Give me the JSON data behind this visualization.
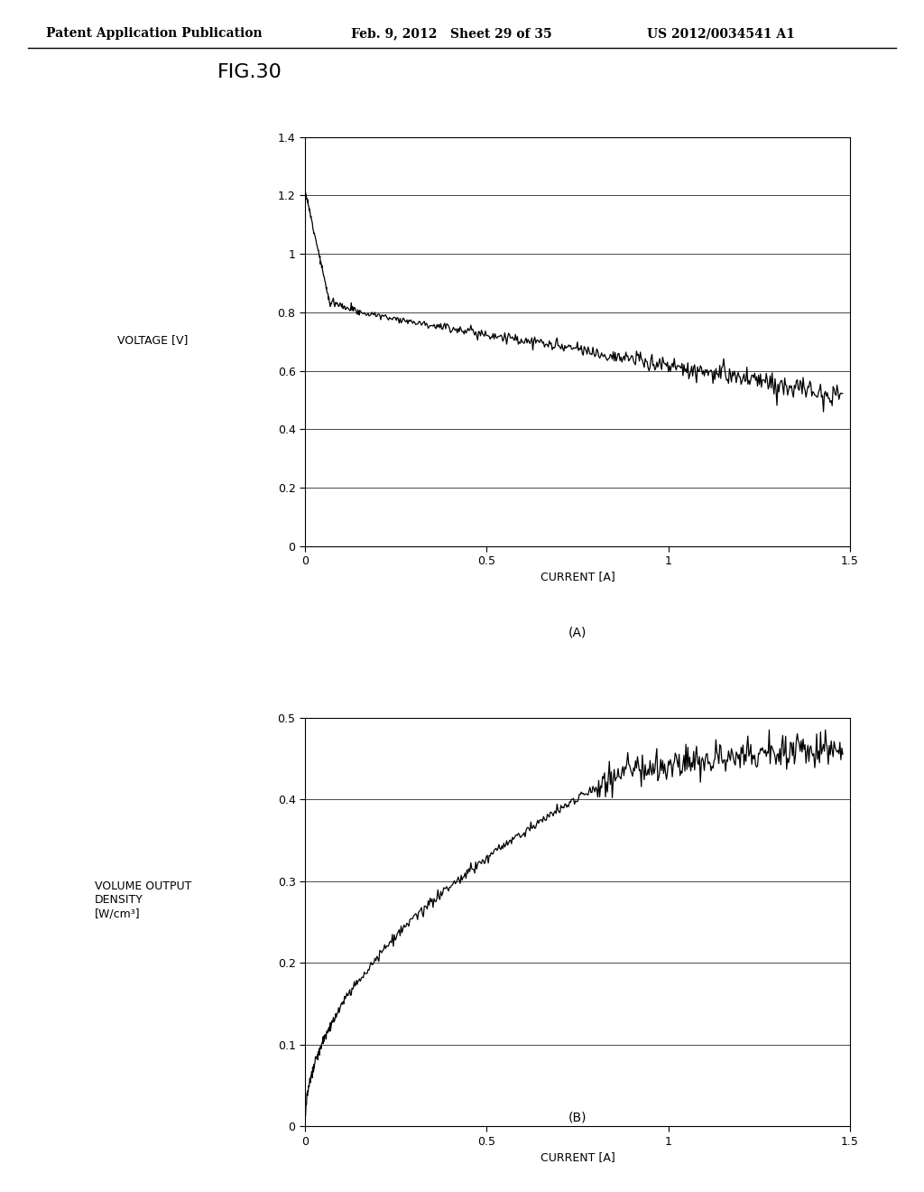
{
  "header_left": "Patent Application Publication",
  "header_mid": "Feb. 9, 2012   Sheet 29 of 35",
  "header_right": "US 2012/0034541 A1",
  "fig_label": "FIG.30",
  "plot_A": {
    "xlabel": "CURRENT [A]",
    "ylabel": "VOLTAGE [V]",
    "caption": "(A)",
    "xlim": [
      0,
      1.5
    ],
    "ylim": [
      0,
      1.4
    ],
    "xticks": [
      0,
      0.5,
      1,
      1.5
    ],
    "yticks": [
      0,
      0.2,
      0.4,
      0.6,
      0.8,
      1.0,
      1.2,
      1.4
    ]
  },
  "plot_B": {
    "xlabel": "CURRENT [A]",
    "ylabel_line1": "VOLUME OUTPUT",
    "ylabel_line2": "DENSITY",
    "ylabel_line3": "[W/cm³]",
    "caption": "(B)",
    "xlim": [
      0,
      1.5
    ],
    "ylim": [
      0,
      0.5
    ],
    "xticks": [
      0,
      0.5,
      1,
      1.5
    ],
    "yticks": [
      0,
      0.1,
      0.2,
      0.3,
      0.4,
      0.5
    ]
  },
  "background_color": "#f5f5f5",
  "line_color": "#000000",
  "header_fontsize": 10,
  "fig_label_fontsize": 16,
  "axis_label_fontsize": 9,
  "caption_fontsize": 10,
  "tick_fontsize": 9
}
